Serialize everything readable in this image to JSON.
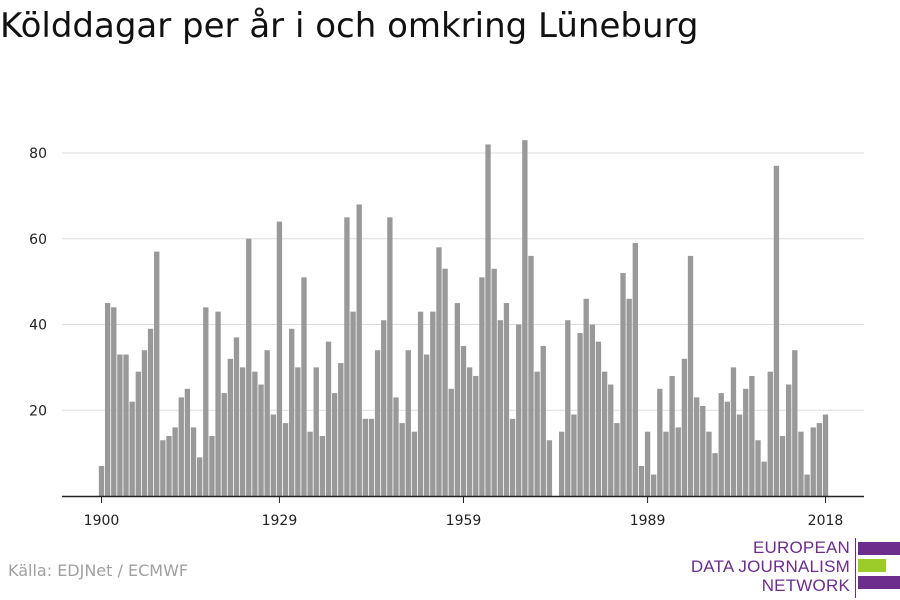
{
  "title": "Kölddagar per år i och omkring Lüneburg",
  "source": "Källa: EDJNet / ECMWF",
  "logo": {
    "lines": [
      "EUROPEAN",
      "DATA JOURNALISM",
      "NETWORK"
    ],
    "colors": {
      "purple": "#6c2d8c",
      "green": "#9ccc2a"
    }
  },
  "colors": {
    "bar": "#999999",
    "grid": "#dddddd",
    "axis": "#222222"
  },
  "chart_data": {
    "type": "bar",
    "title": "Kölddagar per år i och omkring Lüneburg",
    "xlabel": "",
    "ylabel": "",
    "x_tick_labels": [
      "1900",
      "1929",
      "1959",
      "1989",
      "2018"
    ],
    "y_tick_labels": [
      "20",
      "40",
      "60",
      "80"
    ],
    "ylim": [
      0,
      85
    ],
    "grid": true,
    "categories": [
      1900,
      1901,
      1902,
      1903,
      1904,
      1905,
      1906,
      1907,
      1908,
      1909,
      1910,
      1911,
      1912,
      1913,
      1914,
      1915,
      1916,
      1917,
      1918,
      1919,
      1920,
      1921,
      1922,
      1923,
      1924,
      1925,
      1926,
      1927,
      1928,
      1929,
      1930,
      1931,
      1932,
      1933,
      1934,
      1935,
      1936,
      1937,
      1938,
      1939,
      1940,
      1941,
      1942,
      1943,
      1944,
      1945,
      1946,
      1947,
      1948,
      1949,
      1950,
      1951,
      1952,
      1953,
      1954,
      1955,
      1956,
      1957,
      1958,
      1959,
      1960,
      1961,
      1962,
      1963,
      1964,
      1965,
      1966,
      1967,
      1968,
      1969,
      1970,
      1971,
      1972,
      1973,
      1974,
      1975,
      1976,
      1977,
      1978,
      1979,
      1980,
      1981,
      1982,
      1983,
      1984,
      1985,
      1986,
      1987,
      1988,
      1989,
      1990,
      1991,
      1992,
      1993,
      1994,
      1995,
      1996,
      1997,
      1998,
      1999,
      2000,
      2001,
      2002,
      2003,
      2004,
      2005,
      2006,
      2007,
      2008,
      2009,
      2010,
      2011,
      2012,
      2013,
      2014,
      2015,
      2016,
      2017,
      2018
    ],
    "values": [
      7,
      45,
      44,
      33,
      33,
      22,
      29,
      34,
      39,
      57,
      13,
      14,
      16,
      23,
      25,
      16,
      9,
      44,
      14,
      43,
      24,
      32,
      37,
      30,
      60,
      29,
      26,
      34,
      19,
      64,
      17,
      39,
      30,
      51,
      15,
      30,
      14,
      36,
      24,
      31,
      65,
      43,
      68,
      18,
      18,
      34,
      41,
      65,
      23,
      17,
      34,
      15,
      43,
      33,
      43,
      58,
      53,
      25,
      45,
      35,
      30,
      28,
      51,
      82,
      53,
      41,
      45,
      18,
      40,
      83,
      56,
      29,
      35,
      13,
      0,
      15,
      41,
      19,
      38,
      46,
      40,
      36,
      29,
      26,
      17,
      52,
      46,
      59,
      7,
      15,
      5,
      25,
      15,
      28,
      16,
      32,
      56,
      23,
      21,
      15,
      10,
      24,
      22,
      30,
      19,
      25,
      28,
      13,
      8,
      29,
      77,
      14,
      26,
      34,
      15,
      5,
      16,
      17,
      19
    ]
  }
}
